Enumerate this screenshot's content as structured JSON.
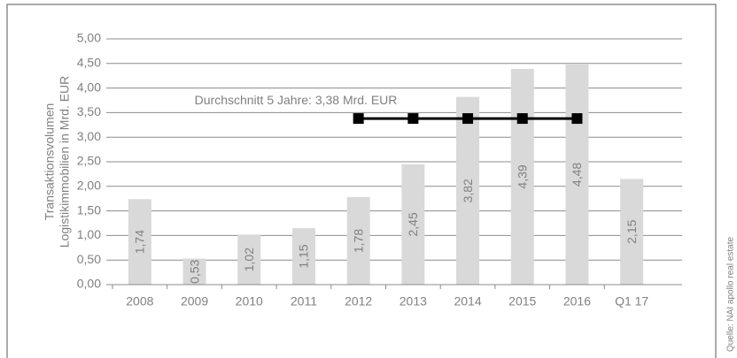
{
  "chart_data": {
    "type": "bar",
    "y_axis_label": [
      "Transaktionsvolumen",
      "Logistikimmobilien in Mrd. EUR"
    ],
    "categories": [
      "2008",
      "2009",
      "2010",
      "2011",
      "2012",
      "2013",
      "2014",
      "2015",
      "2016",
      "Q1 17"
    ],
    "series": [
      {
        "type": "bar",
        "color": "#d9d9d9",
        "values": [
          1.74,
          0.53,
          1.02,
          1.15,
          1.78,
          2.45,
          3.82,
          4.39,
          4.48,
          2.15
        ],
        "value_labels": [
          "1,74",
          "0,53",
          "1,02",
          "1,15",
          "1,78",
          "2,45",
          "3,82",
          "4,39",
          "4,48",
          "2,15"
        ]
      },
      {
        "type": "line",
        "color": "#000000",
        "values": [
          null,
          null,
          null,
          null,
          3.38,
          3.38,
          3.38,
          3.38,
          3.38,
          null
        ]
      }
    ],
    "annotation": "Durchschnitt 5 Jahre: 3,38 Mrd. EUR",
    "source": "Quelle: NAI apollo real estate",
    "ylim": [
      0,
      5
    ],
    "yticks": [
      {
        "value": 0,
        "label": "0,00"
      },
      {
        "value": 0.5,
        "label": "0,50"
      },
      {
        "value": 1,
        "label": "1,00"
      },
      {
        "value": 1.5,
        "label": "1,50"
      },
      {
        "value": 2,
        "label": "2,00"
      },
      {
        "value": 2.5,
        "label": "2,50"
      },
      {
        "value": 3,
        "label": "3,00"
      },
      {
        "value": 3.5,
        "label": "3,50"
      },
      {
        "value": 4,
        "label": "4,00"
      },
      {
        "value": 4.5,
        "label": "4,50"
      },
      {
        "value": 5,
        "label": "5,00"
      }
    ],
    "grid": true
  }
}
